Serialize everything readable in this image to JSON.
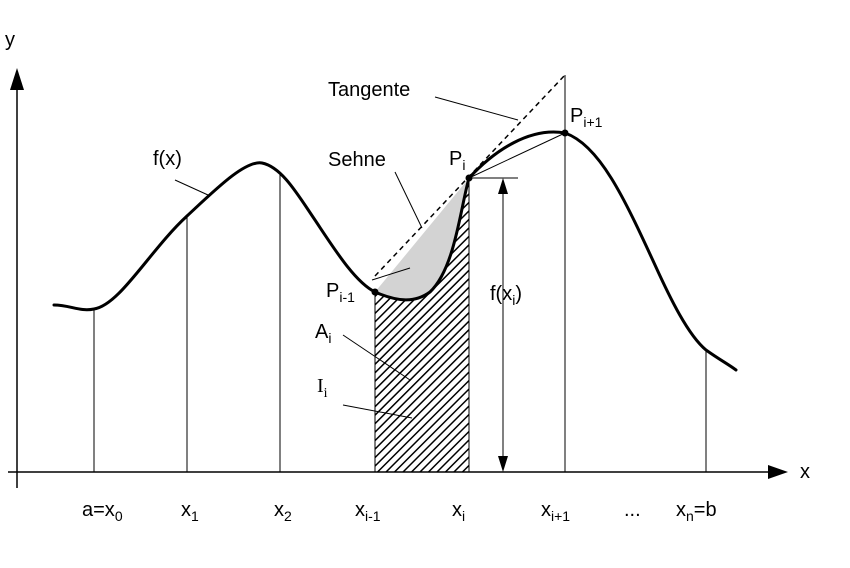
{
  "axes": {
    "x_label": "x",
    "y_label": "y"
  },
  "ticks": [
    {
      "base": "a=x",
      "sub": "0",
      "suffix": ""
    },
    {
      "base": "x",
      "sub": "1",
      "suffix": ""
    },
    {
      "base": "x",
      "sub": "2",
      "suffix": ""
    },
    {
      "base": "x",
      "sub": "i-1",
      "suffix": ""
    },
    {
      "base": "x",
      "sub": "i",
      "suffix": ""
    },
    {
      "base": "x",
      "sub": "i+1",
      "suffix": ""
    },
    {
      "base": "...",
      "sub": "",
      "suffix": ""
    },
    {
      "base": "x",
      "sub": "n",
      "suffix": "=b"
    }
  ],
  "labels": {
    "function": "f(x)",
    "tangent": "Tangente",
    "chord": "Sehne",
    "p_prev": {
      "base": "P",
      "sub": "i-1"
    },
    "p_i": {
      "base": "P",
      "sub": "i"
    },
    "p_next": {
      "base": "P",
      "sub": "i+1"
    },
    "f_xi": {
      "prefix": "f(x",
      "sub": "i",
      "suffix": ")"
    },
    "area_a": {
      "base": "A",
      "sub": "i"
    },
    "integral_i": {
      "base": "I",
      "sub": "i"
    }
  },
  "colors": {
    "line": "#000000",
    "chord_area_fill": "#d3d3d3",
    "hatch": "#000000"
  }
}
